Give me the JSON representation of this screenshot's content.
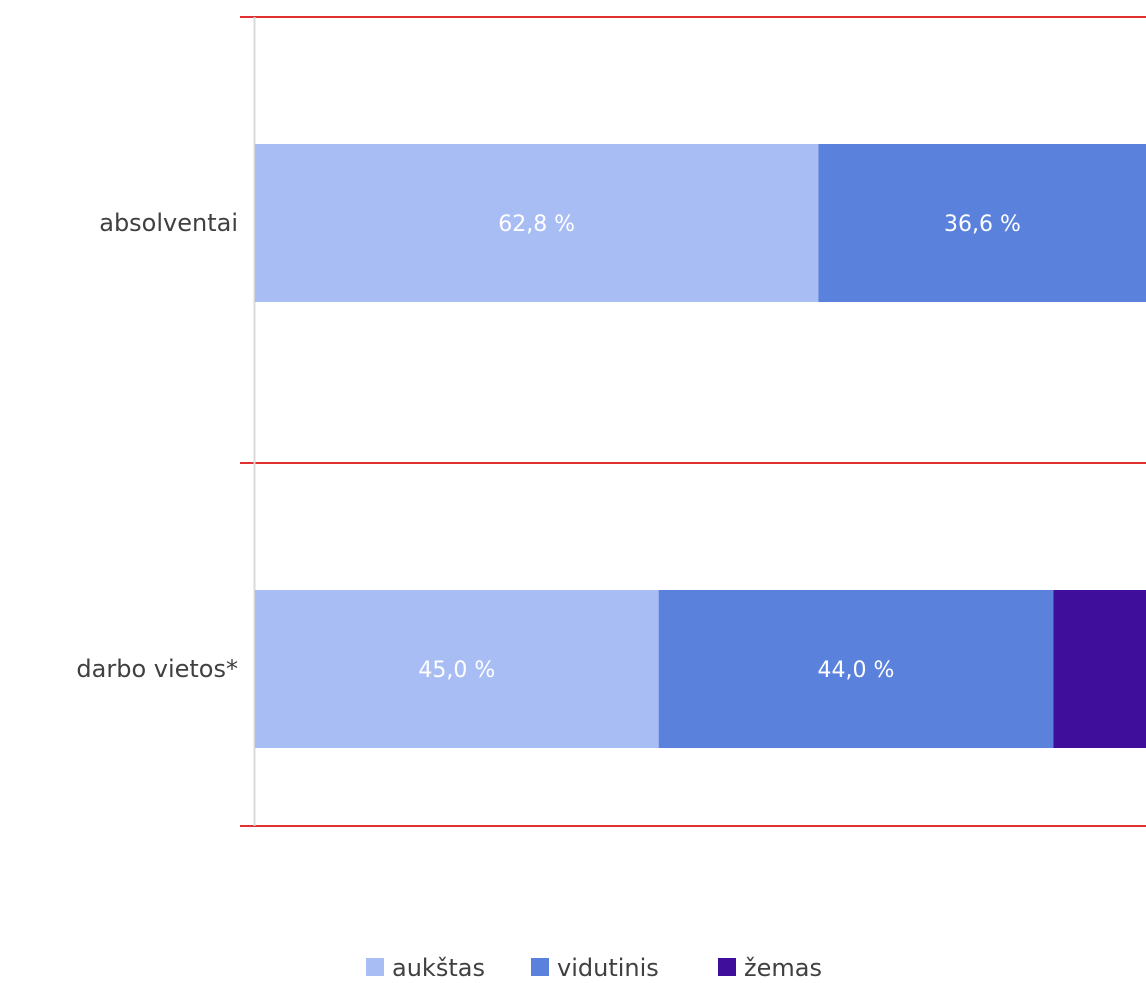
{
  "chart_data": {
    "type": "bar",
    "orientation": "horizontal",
    "stacked": true,
    "categories": [
      "absolventai",
      "darbo vietos*"
    ],
    "series": [
      {
        "name": "aukštas",
        "values": [
          62.8,
          45.0
        ],
        "labels": [
          "62,8 %",
          "45,0 %"
        ],
        "color": "#a9bdf5"
      },
      {
        "name": "vidutinis",
        "values": [
          36.6,
          44.0
        ],
        "labels": [
          "36,6 %",
          "44,0 %"
        ],
        "color": "#5a82dc"
      },
      {
        "name": "žemas",
        "values": [
          0.6,
          11.0
        ],
        "labels": [
          "",
          ""
        ],
        "color": "#3f0f9b"
      }
    ],
    "xlim": [
      0,
      100
    ],
    "legend_position": "bottom",
    "separator_color": "#e03030",
    "axis_color": "#d9d9d9"
  }
}
